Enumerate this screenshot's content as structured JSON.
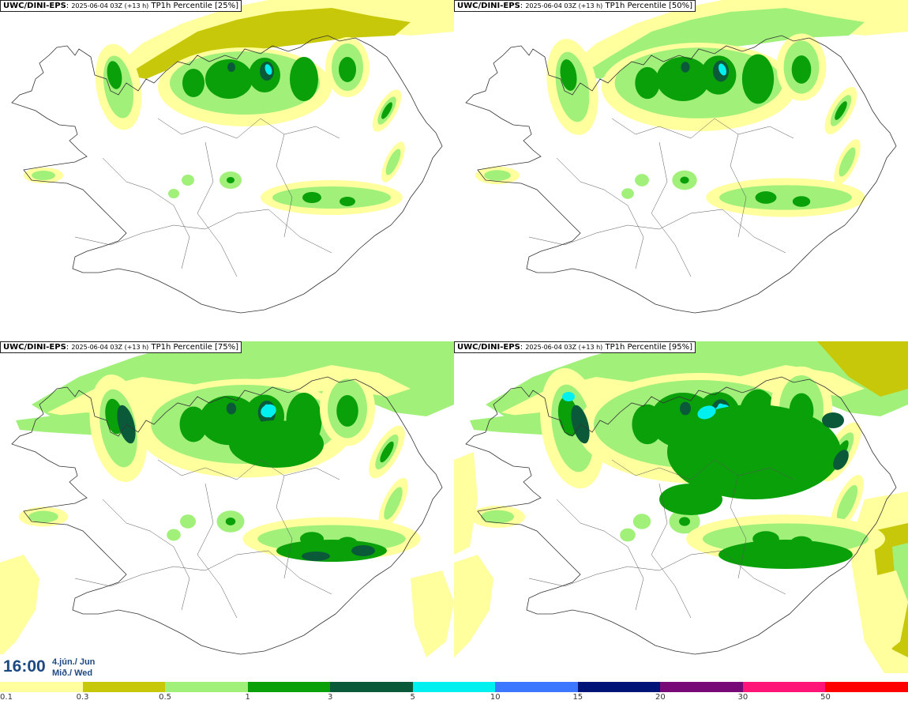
{
  "panels": [
    {
      "source": "UWC/DINI-EPS",
      "run": "2025-06-04 03Z (+13 h)",
      "label": "TP1h Percentile [25%]",
      "level": 0
    },
    {
      "source": "UWC/DINI-EPS",
      "run": "2025-06-04 03Z (+13 h)",
      "label": "TP1h Percentile [50%]",
      "level": 1
    },
    {
      "source": "UWC/DINI-EPS",
      "run": "2025-06-04 03Z (+13 h)",
      "label": "TP1h Percentile [75%]",
      "level": 2
    },
    {
      "source": "UWC/DINI-EPS",
      "run": "2025-06-04 03Z (+13 h)",
      "label": "TP1h Percentile [95%]",
      "level": 3
    }
  ],
  "time": {
    "clock": "16:00",
    "date_line1": "4.jún./ Jun",
    "date_line2": "Mið./ Wed"
  },
  "legend": {
    "ticks": [
      "0.1",
      "0.3",
      "0.5",
      "1",
      "3",
      "5",
      "10",
      "15",
      "20",
      "30",
      "50"
    ],
    "colors": [
      "#ffff9e",
      "#c8c80a",
      "#a0f07a",
      "#0aa00a",
      "#0a5a3a",
      "#00f0f0",
      "#3c78ff",
      "#001478",
      "#780a78",
      "#ff1478",
      "#ff0000"
    ]
  },
  "colors": {
    "outline": "#333333",
    "background": "#ffffff"
  }
}
